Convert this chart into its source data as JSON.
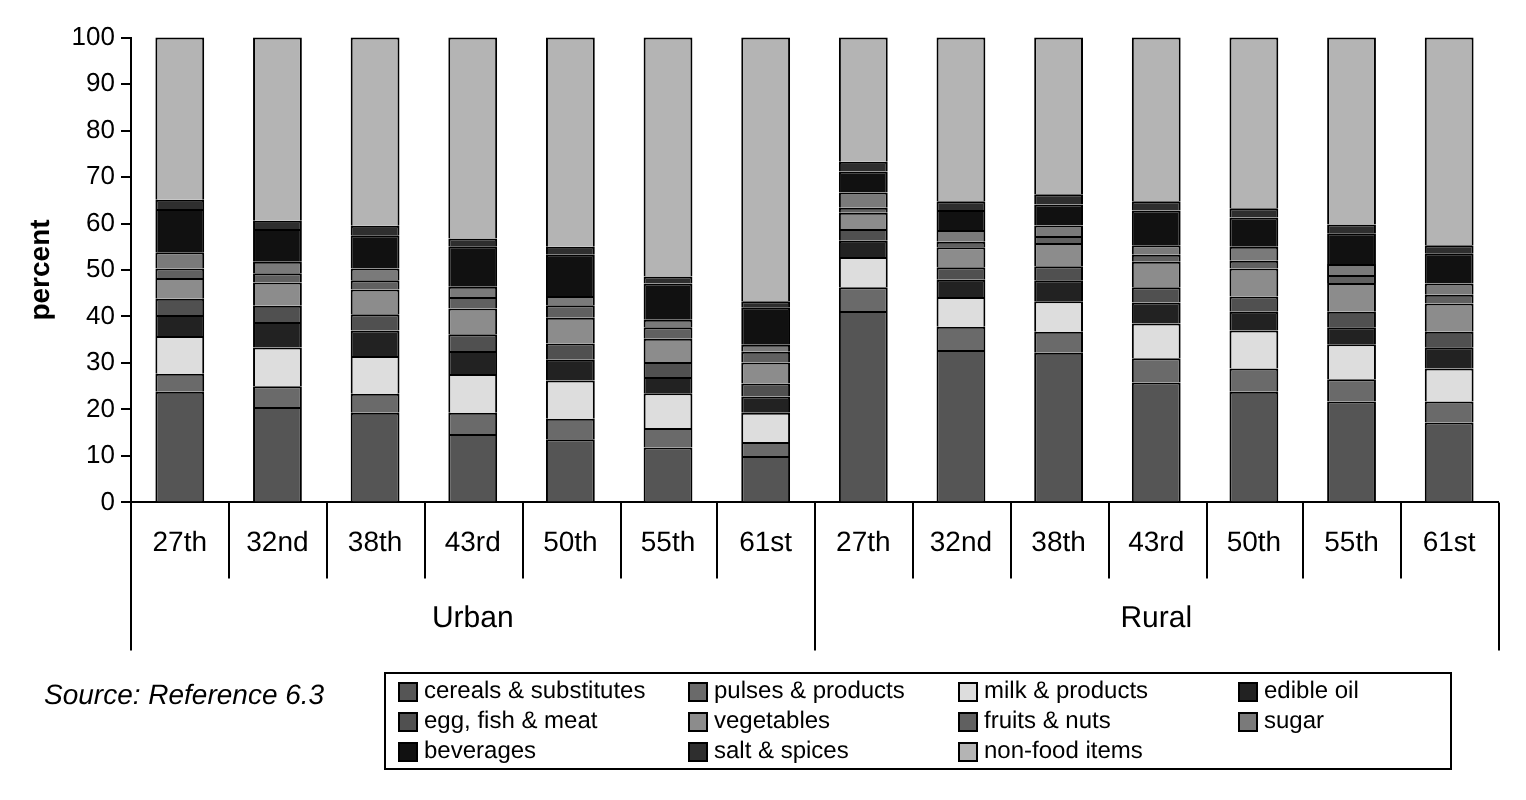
{
  "chart_data": {
    "type": "bar",
    "stacked": true,
    "ylabel": "percent",
    "categories": [
      "27th",
      "32nd",
      "38th",
      "43rd",
      "50th",
      "55th",
      "61st",
      "27th",
      "32nd",
      "38th",
      "43rd",
      "50th",
      "55th",
      "61st"
    ],
    "ylim": [
      0,
      100
    ],
    "yticks": [
      0,
      10,
      20,
      30,
      40,
      50,
      60,
      70,
      80,
      90,
      100
    ],
    "grid": false,
    "legend": "bottom",
    "annotations": [
      "Urban",
      "Rural",
      "Source: Reference 6.3"
    ],
    "series": [
      {
        "name": "cereals & substitutes",
        "color": "#555555",
        "values": [
          23.8,
          20.5,
          19.3,
          14.7,
          13.6,
          11.8,
          10.0,
          41.2,
          32.8,
          32.2,
          25.8,
          23.8,
          21.7,
          17.2
        ]
      },
      {
        "name": "pulses & products",
        "color": "#6a6a6a",
        "values": [
          3.9,
          4.5,
          4.1,
          4.6,
          4.4,
          4.2,
          3.0,
          5.1,
          5.0,
          4.5,
          5.2,
          5.0,
          4.8,
          4.5
        ]
      },
      {
        "name": "milk & products",
        "color": "#dddddd",
        "values": [
          8.1,
          8.3,
          8.1,
          8.3,
          8.2,
          7.5,
          6.3,
          6.5,
          6.4,
          6.6,
          7.5,
          8.2,
          7.5,
          7.1
        ]
      },
      {
        "name": "edible oil",
        "color": "#222222",
        "values": [
          4.5,
          5.5,
          5.5,
          5.0,
          4.5,
          3.5,
          3.5,
          3.5,
          3.7,
          4.5,
          4.5,
          4.0,
          3.7,
          4.6
        ]
      },
      {
        "name": "egg, fish & meat",
        "color": "#505050",
        "values": [
          3.5,
          3.5,
          3.5,
          3.6,
          3.5,
          3.2,
          2.8,
          2.5,
          2.7,
          3.0,
          3.3,
          3.3,
          3.3,
          3.3
        ]
      },
      {
        "name": "vegetables",
        "color": "#8c8c8c",
        "values": [
          4.5,
          5.0,
          5.3,
          5.5,
          5.5,
          5.0,
          4.5,
          3.5,
          4.3,
          5.0,
          5.5,
          6.0,
          6.2,
          6.1
        ]
      },
      {
        "name": "fruits & nuts",
        "color": "#606060",
        "values": [
          2.0,
          2.0,
          2.0,
          2.5,
          2.7,
          2.5,
          2.3,
          1.1,
          1.2,
          1.5,
          1.5,
          1.7,
          1.7,
          1.9
        ]
      },
      {
        "name": "sugar",
        "color": "#7a7a7a",
        "values": [
          3.5,
          2.5,
          2.5,
          2.2,
          2.0,
          1.6,
          1.5,
          3.3,
          2.5,
          2.3,
          2.0,
          3.0,
          2.4,
          2.4
        ]
      },
      {
        "name": "beverages",
        "color": "#111111",
        "values": [
          9.3,
          7.0,
          7.2,
          8.7,
          8.9,
          7.8,
          8.1,
          4.5,
          4.3,
          4.5,
          7.5,
          6.3,
          6.6,
          6.5
        ]
      },
      {
        "name": "salt & spices",
        "color": "#2e2e2e",
        "values": [
          2.0,
          1.8,
          2.0,
          1.7,
          1.7,
          1.5,
          1.3,
          2.1,
          1.9,
          2.2,
          2.0,
          2.0,
          1.9,
          1.7
        ]
      },
      {
        "name": "non-food items",
        "color": "#b4b4b4",
        "values": [
          34.9,
          39.4,
          40.5,
          43.2,
          45.0,
          51.4,
          56.7,
          26.7,
          35.2,
          33.7,
          35.2,
          36.7,
          40.2,
          44.7
        ]
      }
    ]
  }
}
